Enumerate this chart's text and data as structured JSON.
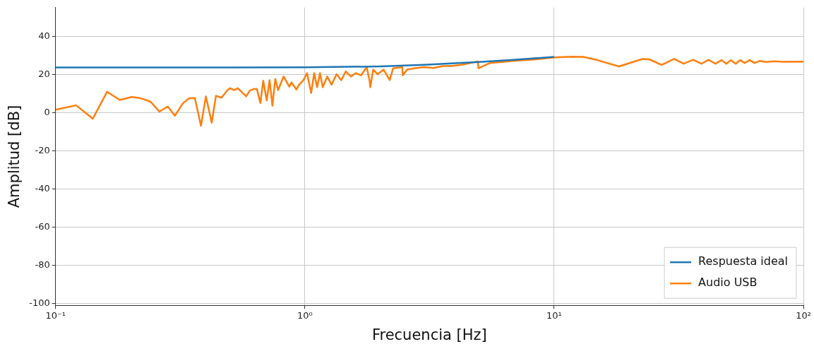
{
  "chart_data": {
    "type": "line",
    "xlabel": "Frecuencia [Hz]",
    "ylabel": "Amplitud [dB]",
    "log": "x",
    "xlim": [
      0.1,
      100
    ],
    "xticks": [
      {
        "value": 0.1,
        "label": "10⁻¹"
      },
      {
        "value": 1,
        "label": "10⁰"
      },
      {
        "value": 10,
        "label": "10¹"
      },
      {
        "value": 100,
        "label": "10²"
      }
    ],
    "ylim": [
      -101,
      55
    ],
    "yticks": [
      -100,
      -80,
      -60,
      -40,
      -20,
      0,
      20,
      40
    ],
    "grid": true,
    "legend": "bottom right",
    "line_style": "solid",
    "marker": "none",
    "series": [
      {
        "name": "Respuesta ideal",
        "color": "#1f77b4",
        "x": [
          0.1,
          0.5,
          1,
          2,
          3,
          5,
          7,
          10
        ],
        "values": [
          23.6,
          23.6,
          23.7,
          24.2,
          25,
          26.5,
          27.7,
          29.2
        ]
      },
      {
        "name": "Audio USB",
        "color": "#ff7f0e",
        "x": [
          0.1,
          0.121,
          0.141,
          0.161,
          0.181,
          0.202,
          0.22,
          0.24,
          0.261,
          0.282,
          0.301,
          0.324,
          0.343,
          0.362,
          0.383,
          0.401,
          0.423,
          0.44,
          0.463,
          0.488,
          0.501,
          0.521,
          0.538,
          0.582,
          0.601,
          0.625,
          0.642,
          0.663,
          0.681,
          0.703,
          0.722,
          0.741,
          0.761,
          0.781,
          0.822,
          0.866,
          0.884,
          0.925,
          0.949,
          0.987,
          1.02,
          1.06,
          1.09,
          1.12,
          1.15,
          1.18,
          1.23,
          1.28,
          1.34,
          1.4,
          1.46,
          1.53,
          1.6,
          1.68,
          1.77,
          1.82,
          1.83,
          1.88,
          1.96,
          2.07,
          2.19,
          2.26,
          2.46,
          2.47,
          2.57,
          2.75,
          2.99,
          3.28,
          3.57,
          3.88,
          4.25,
          4.94,
          4.97,
          5.53,
          6.84,
          8.46,
          10,
          11.8,
          13.1,
          14.9,
          18.2,
          22.6,
          24.1,
          27,
          30.3,
          33.1,
          36.1,
          39,
          41.6,
          44.4,
          46.9,
          49.1,
          51.1,
          53.5,
          55.8,
          58.1,
          60.9,
          63.6,
          67,
          70.6,
          76.3,
          83.1,
          100
        ],
        "values": [
          1.5,
          3.8,
          -3.2,
          10.9,
          6.6,
          8.2,
          7.5,
          5.8,
          0.5,
          3.2,
          -1.6,
          4.8,
          7.5,
          7.6,
          -6.9,
          8.5,
          -5.3,
          8.8,
          7.8,
          11.5,
          12.8,
          11.8,
          12.8,
          8.5,
          11.5,
          12.4,
          12.4,
          5,
          16.7,
          6.3,
          17,
          3.6,
          17.6,
          11.8,
          18.9,
          13.6,
          15.8,
          12.1,
          14.6,
          17,
          20.7,
          10.3,
          20.7,
          13.3,
          20.7,
          13.3,
          18.9,
          14.6,
          20.1,
          17,
          21.6,
          18.9,
          20.7,
          19.5,
          23.8,
          16.4,
          13.3,
          22.5,
          20.1,
          22.5,
          17,
          23.2,
          23.8,
          19.5,
          22.5,
          23.2,
          23.8,
          23.4,
          24.4,
          24.4,
          25,
          26.8,
          23.2,
          26,
          27.1,
          27.9,
          28.9,
          29.3,
          29.2,
          27.5,
          24.2,
          28.1,
          27.9,
          25,
          28.1,
          25.6,
          27.7,
          25.6,
          27.7,
          25.6,
          27.5,
          25.6,
          27.5,
          25.6,
          27.5,
          26,
          27.5,
          26,
          27.1,
          26.5,
          26.9,
          26.6,
          26.7
        ]
      }
    ]
  }
}
